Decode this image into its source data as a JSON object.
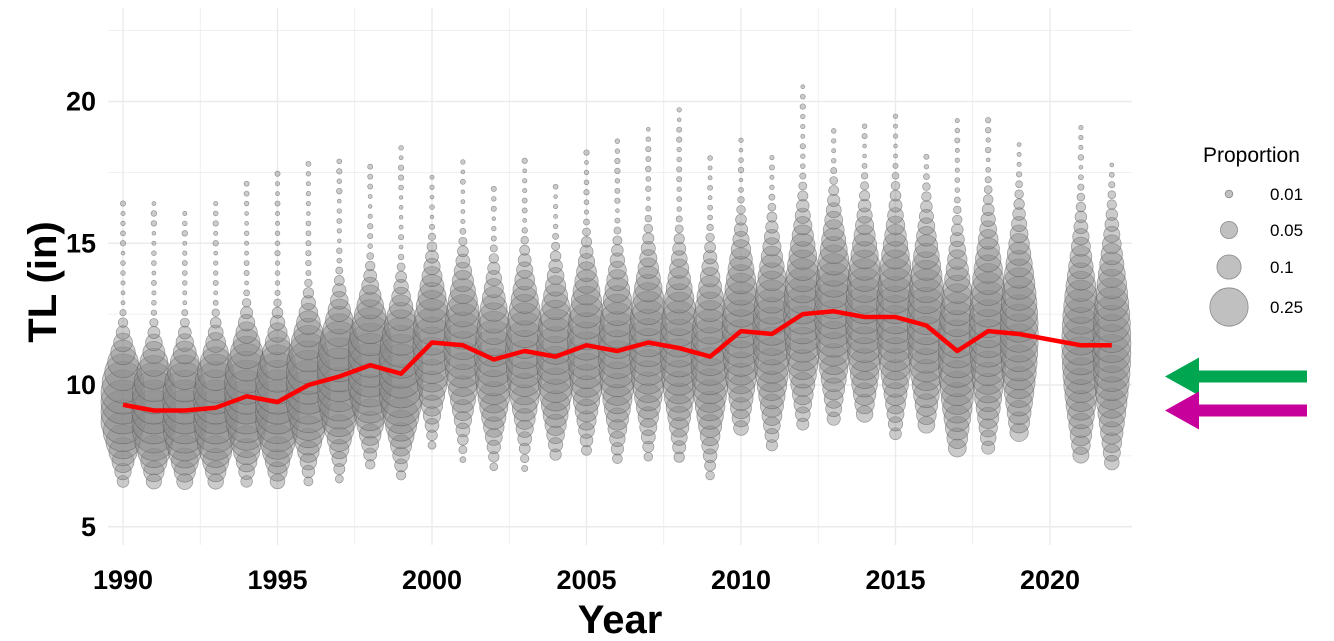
{
  "colors": {
    "bubble_fill": "#8c8c8c",
    "bubble_stroke": "#555555",
    "mean_line": "#ff0000",
    "arrow_upper": "#00a650",
    "arrow_lower": "#c8009b",
    "grid": "#ebebeb"
  },
  "chart_data": {
    "type": "scatter",
    "xlabel": "Year",
    "ylabel": "TL (in)",
    "xlim": [
      1989.5,
      2022.5
    ],
    "ylim": [
      4.5,
      23.5
    ],
    "x_ticks": [
      1990,
      1995,
      2000,
      2005,
      2010,
      2015,
      2020
    ],
    "y_ticks": [
      5,
      10,
      15,
      20
    ],
    "x_tick_labels": [
      "1990",
      "1995",
      "2000",
      "2005",
      "2010",
      "2015",
      "2020"
    ],
    "y_tick_labels": [
      "5",
      "10",
      "15",
      "20"
    ],
    "grid": true,
    "legend": {
      "title": "Proportion",
      "position": "right",
      "entries": [
        {
          "label": "0.01",
          "size": 0.01
        },
        {
          "label": "0.05",
          "size": 0.05
        },
        {
          "label": "0.1",
          "size": 0.1
        },
        {
          "label": "0.25",
          "size": 0.25
        }
      ]
    },
    "mean_line": {
      "x": [
        1990,
        1991,
        1992,
        1993,
        1994,
        1995,
        1996,
        1997,
        1998,
        1999,
        2000,
        2001,
        2002,
        2003,
        2004,
        2005,
        2006,
        2007,
        2008,
        2009,
        2010,
        2011,
        2012,
        2013,
        2014,
        2015,
        2016,
        2017,
        2018,
        2019,
        2020,
        2021,
        2022
      ],
      "y": [
        9.3,
        9.1,
        9.1,
        9.2,
        9.6,
        9.4,
        10.0,
        10.3,
        10.7,
        10.4,
        11.5,
        11.4,
        10.9,
        11.2,
        11.0,
        11.4,
        11.2,
        11.5,
        11.3,
        11.0,
        11.9,
        11.8,
        12.5,
        12.6,
        12.4,
        12.4,
        12.1,
        11.2,
        11.9,
        11.8,
        11.6,
        11.4,
        11.4
      ]
    },
    "years": [
      1990,
      1991,
      1992,
      1993,
      1994,
      1995,
      1996,
      1997,
      1998,
      1999,
      2000,
      2001,
      2002,
      2003,
      2004,
      2005,
      2006,
      2007,
      2008,
      2009,
      2010,
      2011,
      2012,
      2013,
      2014,
      2015,
      2016,
      2017,
      2018,
      2019,
      2021,
      2022
    ],
    "annotations": [
      {
        "type": "arrow",
        "color": "#00a650",
        "y": 10.3,
        "direction": "left"
      },
      {
        "type": "arrow",
        "color": "#c8009b",
        "y": 9.1,
        "direction": "left"
      }
    ]
  }
}
